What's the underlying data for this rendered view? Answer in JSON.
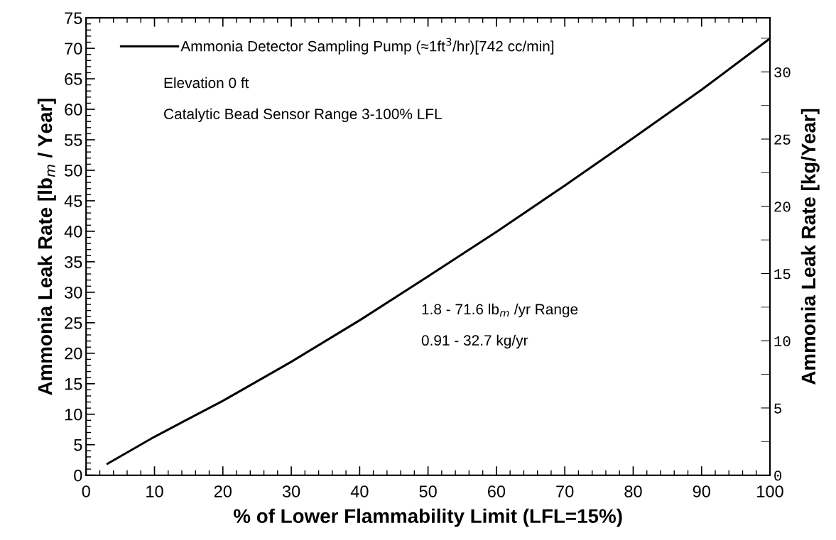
{
  "chart_data": {
    "type": "line",
    "xlabel": "% of Lower Flammability Limit (LFL=15%)",
    "ylabel": "Ammonia Leak Rate [lb$_{m}$ / Year]",
    "y2label": "Ammonia Leak Rate [kg/Year]",
    "x": [
      3,
      10,
      20,
      30,
      40,
      50,
      60,
      70,
      80,
      90,
      100
    ],
    "series": [
      {
        "name": "Ammonia Detector Sampling Pump (≈1ft$^{3}$/hr)[742 cc/min]",
        "color": "#000000",
        "values": [
          1.8,
          6.3,
          12.2,
          18.6,
          25.4,
          32.6,
          39.9,
          47.5,
          55.3,
          63.2,
          71.6
        ]
      }
    ],
    "xlim": [
      0,
      100
    ],
    "xticks": [
      0,
      10,
      20,
      30,
      40,
      50,
      60,
      70,
      80,
      90,
      100
    ],
    "ylim": [
      0,
      75
    ],
    "yticks": [
      0,
      5,
      10,
      15,
      20,
      25,
      30,
      35,
      40,
      45,
      50,
      55,
      60,
      65,
      70,
      75
    ],
    "y2lim": [
      0,
      34.02
    ],
    "y2ticks": [
      0,
      5,
      10,
      15,
      20,
      25,
      30
    ],
    "annotations": [
      "Elevation 0 ft",
      "Catalytic Bead Sensor Range 3-100% LFL",
      "1.8 - 71.6 lb$_{m}$ /yr Range",
      "0.91 - 32.7 kg/yr"
    ],
    "legend": "top left",
    "grid": false,
    "marker": "none",
    "line_style": "solid"
  }
}
